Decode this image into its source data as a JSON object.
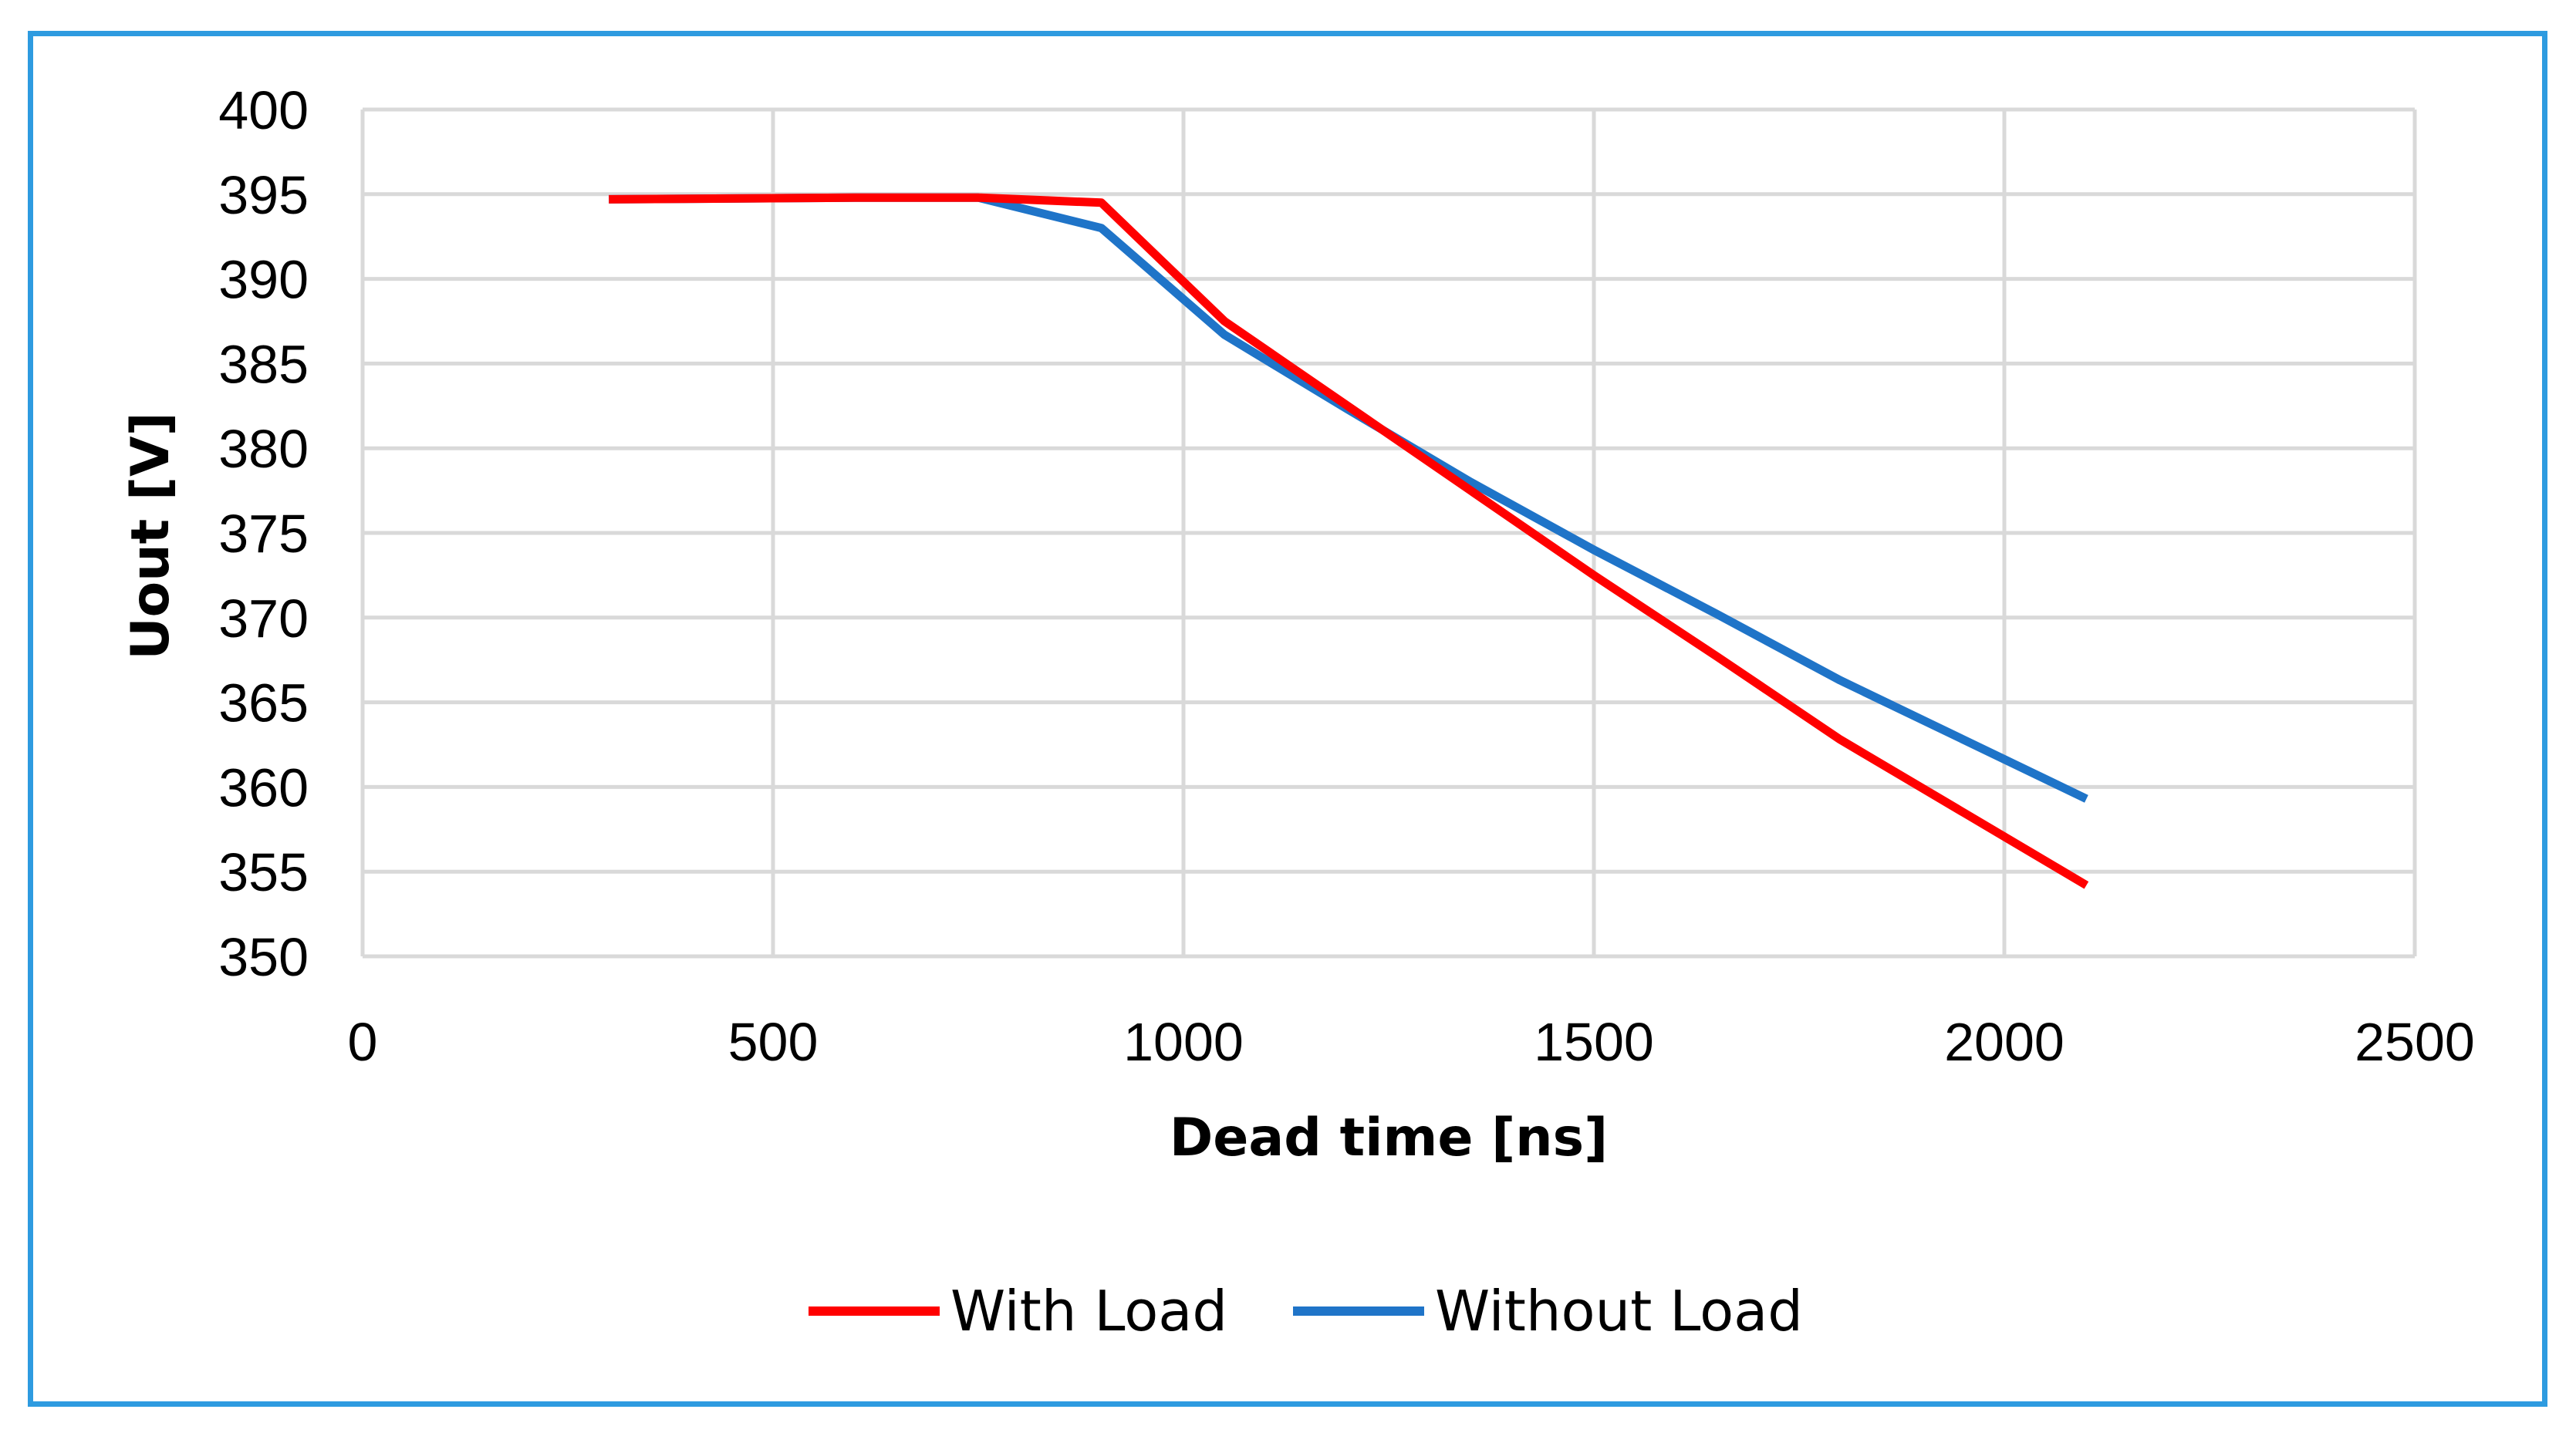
{
  "chart_data": {
    "type": "line",
    "title": "",
    "xlabel": "Dead time [ns]",
    "ylabel": "Uout [V]",
    "xlim": [
      0,
      2500
    ],
    "ylim": [
      350,
      400
    ],
    "x_ticks": [
      0,
      500,
      1000,
      1500,
      2000,
      2500
    ],
    "y_ticks": [
      350,
      355,
      360,
      365,
      370,
      375,
      380,
      385,
      390,
      395,
      400
    ],
    "grid": true,
    "legend_position": "bottom",
    "series": [
      {
        "name": "With Load",
        "color": "#FF0000",
        "x": [
          300,
          600,
          750,
          900,
          1050,
          1200,
          1350,
          1500,
          1650,
          1800,
          1950,
          2100
        ],
        "y": [
          394.7,
          394.8,
          394.8,
          394.5,
          387.5,
          382.5,
          377.5,
          372.5,
          367.7,
          362.8,
          358.5,
          354.2
        ]
      },
      {
        "name": "Without Load",
        "color": "#1F74C8",
        "x": [
          300,
          600,
          750,
          900,
          1050,
          1200,
          1350,
          1500,
          1650,
          1800,
          1950,
          2100
        ],
        "y": [
          394.7,
          394.8,
          394.8,
          393.0,
          386.7,
          382.3,
          378.0,
          374.0,
          370.2,
          366.3,
          362.8,
          359.3
        ]
      }
    ]
  }
}
